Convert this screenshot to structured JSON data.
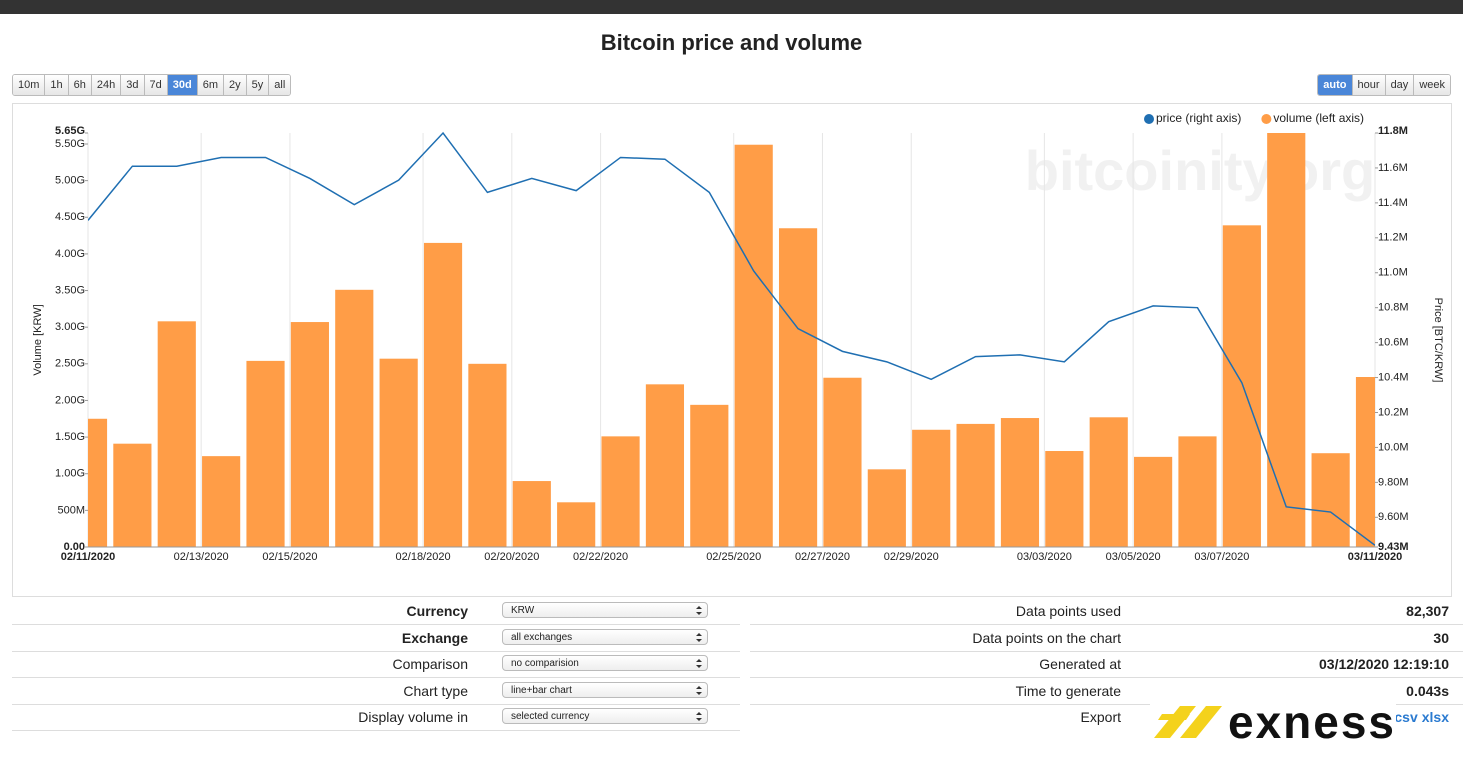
{
  "title": "Bitcoin price and volume",
  "range_buttons": [
    {
      "label": "10m"
    },
    {
      "label": "1h"
    },
    {
      "label": "6h"
    },
    {
      "label": "24h"
    },
    {
      "label": "3d"
    },
    {
      "label": "7d"
    },
    {
      "label": "30d",
      "active": true
    },
    {
      "label": "6m"
    },
    {
      "label": "2y"
    },
    {
      "label": "5y"
    },
    {
      "label": "all"
    }
  ],
  "unit_buttons": [
    {
      "label": "auto",
      "active": true
    },
    {
      "label": "hour"
    },
    {
      "label": "day"
    },
    {
      "label": "week"
    }
  ],
  "chart_data": {
    "type": "combo",
    "watermark": "bitcoinity.org",
    "categories": [
      "02/11/2020",
      null,
      "02/13/2020",
      null,
      "02/15/2020",
      null,
      null,
      "02/18/2020",
      null,
      "02/20/2020",
      null,
      "02/22/2020",
      null,
      null,
      "02/25/2020",
      null,
      "02/27/2020",
      null,
      "02/29/2020",
      null,
      null,
      "03/03/2020",
      null,
      "03/05/2020",
      null,
      "03/07/2020",
      null,
      null,
      null,
      "03/11/2020"
    ],
    "ylabel": "Volume [KRW]",
    "y2label": "Price [BTC/KRW]",
    "grid": "x",
    "legend": "top-right",
    "ylim": [
      0,
      5650000000
    ],
    "yticks": [
      {
        "value": 0,
        "label": "0.00"
      },
      {
        "value": 500000000,
        "label": "500M"
      },
      {
        "value": 1000000000,
        "label": "1.00G"
      },
      {
        "value": 1500000000,
        "label": "1.50G"
      },
      {
        "value": 2000000000,
        "label": "2.00G"
      },
      {
        "value": 2500000000,
        "label": "2.50G"
      },
      {
        "value": 3000000000,
        "label": "3.00G"
      },
      {
        "value": 3500000000,
        "label": "3.50G"
      },
      {
        "value": 4000000000,
        "label": "4.00G"
      },
      {
        "value": 4500000000,
        "label": "4.50G"
      },
      {
        "value": 5000000000,
        "label": "5.00G"
      },
      {
        "value": 5500000000,
        "label": "5.50G"
      },
      {
        "value": 5650000000,
        "label": "5.65G"
      }
    ],
    "y2lim": [
      9430000,
      11800000
    ],
    "y2ticks": [
      {
        "value": 9430000,
        "label": "9.43M"
      },
      {
        "value": 9600000,
        "label": "9.60M"
      },
      {
        "value": 9800000,
        "label": "9.80M"
      },
      {
        "value": 10000000,
        "label": "10.0M"
      },
      {
        "value": 10200000,
        "label": "10.2M"
      },
      {
        "value": 10400000,
        "label": "10.4M"
      },
      {
        "value": 10600000,
        "label": "10.6M"
      },
      {
        "value": 10800000,
        "label": "10.8M"
      },
      {
        "value": 11000000,
        "label": "11.0M"
      },
      {
        "value": 11200000,
        "label": "11.2M"
      },
      {
        "value": 11400000,
        "label": "11.4M"
      },
      {
        "value": 11600000,
        "label": "11.6M"
      },
      {
        "value": 11800000,
        "label": "11.8M"
      }
    ],
    "series": [
      {
        "name": "price (right axis)",
        "type": "line",
        "axis": "y2",
        "color": "#1f6fb2",
        "values": [
          11300000,
          11610000,
          11610000,
          11660000,
          11660000,
          11540000,
          11390000,
          11530000,
          11800000,
          11460000,
          11540000,
          11470000,
          11660000,
          11650000,
          11460000,
          11010000,
          10680000,
          10550000,
          10490000,
          10390000,
          10520000,
          10530000,
          10490000,
          10720000,
          10810000,
          10800000,
          10370000,
          9660000,
          9630000,
          9440000
        ]
      },
      {
        "name": "volume (left axis)",
        "type": "bar",
        "color": "#ff9d47",
        "values": [
          1750000000,
          1410000000,
          3080000000,
          1240000000,
          2540000000,
          3070000000,
          3510000000,
          2570000000,
          4150000000,
          2500000000,
          900000000,
          610000000,
          1510000000,
          2220000000,
          1940000000,
          5490000000,
          4350000000,
          2310000000,
          1060000000,
          1600000000,
          1680000000,
          1760000000,
          1310000000,
          1770000000,
          1230000000,
          1510000000,
          4390000000,
          5650000000,
          1280000000,
          2320000000
        ]
      }
    ]
  },
  "settings": [
    {
      "label": "Currency",
      "value": "KRW",
      "bold": true
    },
    {
      "label": "Exchange",
      "value": "all exchanges",
      "bold": true
    },
    {
      "label": "Comparison",
      "value": "no comparision"
    },
    {
      "label": "Chart type",
      "value": "line+bar chart"
    },
    {
      "label": "Display volume in",
      "value": "selected currency"
    }
  ],
  "stats": [
    {
      "label": "Data points used",
      "value": "82,307"
    },
    {
      "label": "Data points on the chart",
      "value": "30"
    },
    {
      "label": "Generated at",
      "value": "03/12/2020 12:19:10"
    },
    {
      "label": "Time to generate",
      "value": "0.043s"
    }
  ],
  "export": {
    "label": "Export",
    "links": [
      "csv",
      "xlsx"
    ]
  },
  "logo": "exness"
}
